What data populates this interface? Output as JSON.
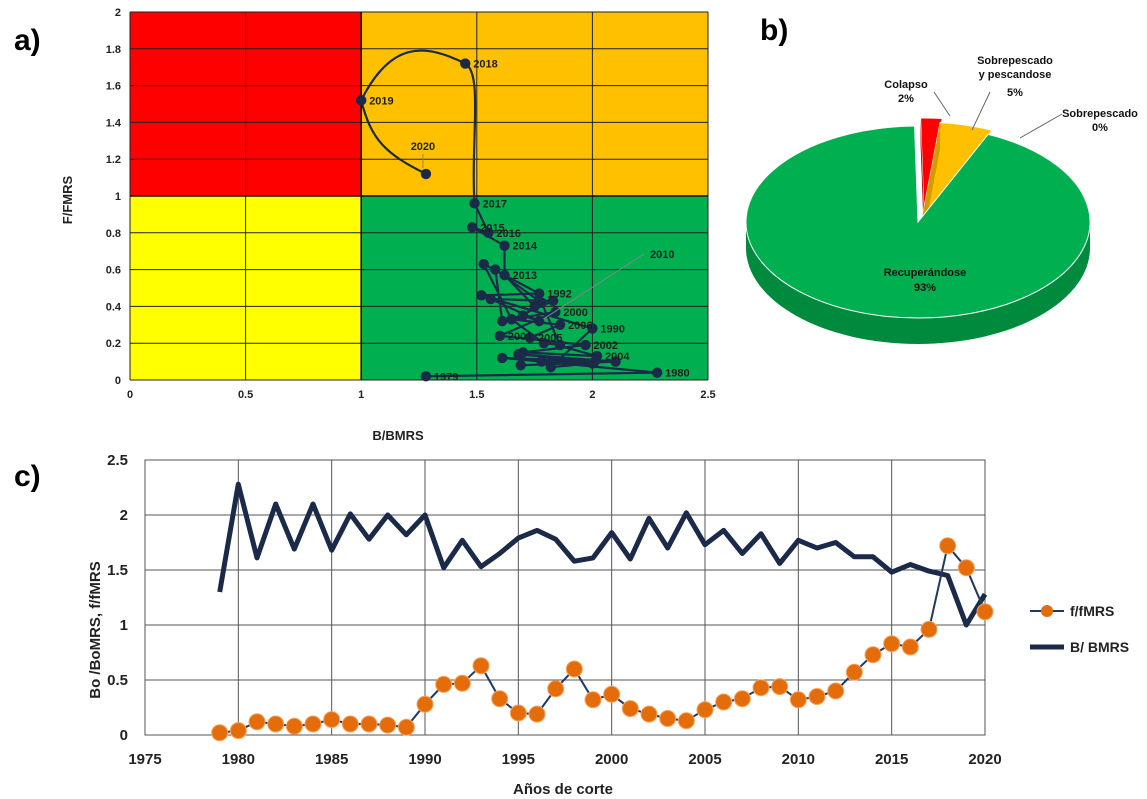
{
  "panels": {
    "a": "a)",
    "b": "b)",
    "c": "c)"
  },
  "colors": {
    "red": "#ff0000",
    "orange": "#ffc000",
    "yellow": "#ffff00",
    "green": "#00b050",
    "navy": "#1b2a48",
    "orange_marker": "#e46c0a",
    "pie_green": "#00b050",
    "pie_yellow": "#ffc000",
    "pie_red": "#ff0000"
  },
  "chart_data": [
    {
      "type": "scatter",
      "panel": "a",
      "xlabel": "B/BMRS",
      "ylabel": "F/FMRS",
      "xlim": [
        0,
        2.5
      ],
      "ylim": [
        0,
        2
      ],
      "xticks": [
        "0",
        "0.5",
        "1",
        "1.5",
        "2",
        "2.5"
      ],
      "yticks": [
        "0",
        "0.2",
        "0.4",
        "0.6",
        "0.8",
        "1",
        "1.2",
        "1.4",
        "1.6",
        "1.8",
        "2"
      ],
      "grid": true,
      "zones": [
        {
          "x": [
            0,
            1
          ],
          "y": [
            1,
            2
          ],
          "color": "red"
        },
        {
          "x": [
            1,
            2.5
          ],
          "y": [
            1,
            2
          ],
          "color": "orange"
        },
        {
          "x": [
            0,
            1
          ],
          "y": [
            0,
            1
          ],
          "color": "yellow"
        },
        {
          "x": [
            1,
            2.5
          ],
          "y": [
            0,
            1
          ],
          "color": "green"
        }
      ],
      "years": [
        1979,
        1980,
        1981,
        1982,
        1983,
        1984,
        1985,
        1986,
        1987,
        1988,
        1989,
        1990,
        1991,
        1992,
        1993,
        1994,
        1995,
        1996,
        1997,
        1998,
        1999,
        2000,
        2001,
        2002,
        2003,
        2004,
        2005,
        2006,
        2007,
        2008,
        2009,
        2010,
        2011,
        2012,
        2013,
        2014,
        2015,
        2016,
        2017,
        2018,
        2019,
        2020
      ],
      "x": [
        1.28,
        2.28,
        1.61,
        2.1,
        1.69,
        2.1,
        1.68,
        2.01,
        1.78,
        2.0,
        1.82,
        2.0,
        1.52,
        1.77,
        1.53,
        1.65,
        1.79,
        1.86,
        1.78,
        1.58,
        1.61,
        1.84,
        1.6,
        1.97,
        1.7,
        2.02,
        1.73,
        1.86,
        1.65,
        1.83,
        1.56,
        1.77,
        1.7,
        1.75,
        1.62,
        1.62,
        1.48,
        1.55,
        1.49,
        1.45,
        1.0,
        1.28
      ],
      "y": [
        0.02,
        0.04,
        0.12,
        0.1,
        0.08,
        0.1,
        0.14,
        0.1,
        0.1,
        0.09,
        0.07,
        0.28,
        0.46,
        0.47,
        0.63,
        0.33,
        0.2,
        0.19,
        0.42,
        0.6,
        0.32,
        0.37,
        0.24,
        0.19,
        0.15,
        0.13,
        0.23,
        0.3,
        0.33,
        0.43,
        0.44,
        0.32,
        0.35,
        0.4,
        0.57,
        0.73,
        0.83,
        0.8,
        0.96,
        1.72,
        1.52,
        1.12
      ],
      "labeled": {
        "1979": "1979",
        "1980": "1980",
        "1990": "1990",
        "1992": "1992",
        "2000": "2000",
        "2001": "2001",
        "2002": "2002",
        "2004": "2004",
        "2005": "2005",
        "2006": "2006",
        "2013": "2013",
        "2014": "2014",
        "2015": "2015",
        "2016": "2016",
        "2017": "2017",
        "2018": "2018",
        "2019": "2019",
        "2020": "2020"
      },
      "callout": "2010"
    },
    {
      "type": "pie",
      "panel": "b",
      "slices": [
        {
          "label": "Colapso",
          "pct_label": "2%",
          "value": 2,
          "color": "pie_red"
        },
        {
          "label": "Sobrepescado y pescandose",
          "line1": "Sobrepescado",
          "line2": "y pescandose",
          "pct_label": "5%",
          "value": 5,
          "color": "pie_yellow"
        },
        {
          "label": "Sobrepescado",
          "pct_label": "0%",
          "value": 0,
          "color": "pie_yellow"
        },
        {
          "label": "Recuperándose",
          "pct_label": "93%",
          "value": 93,
          "color": "pie_green"
        }
      ]
    },
    {
      "type": "line",
      "panel": "c",
      "xlabel": "Años de corte",
      "ylabel": "Bo /BoMRS, f/fMRS",
      "xlim": [
        1975,
        2020
      ],
      "ylim": [
        0,
        2.5
      ],
      "xticks": [
        "1975",
        "1980",
        "1985",
        "1990",
        "1995",
        "2000",
        "2005",
        "2010",
        "2015",
        "2020"
      ],
      "yticks": [
        "0",
        "0.5",
        "1",
        "1.5",
        "2",
        "2.5"
      ],
      "grid": true,
      "legend": "right",
      "x": [
        1979,
        1980,
        1981,
        1982,
        1983,
        1984,
        1985,
        1986,
        1987,
        1988,
        1989,
        1990,
        1991,
        1992,
        1993,
        1994,
        1995,
        1996,
        1997,
        1998,
        1999,
        2000,
        2001,
        2002,
        2003,
        2004,
        2005,
        2006,
        2007,
        2008,
        2009,
        2010,
        2011,
        2012,
        2013,
        2014,
        2015,
        2016,
        2017,
        2018,
        2019,
        2020
      ],
      "series": [
        {
          "name": "f/fMRS",
          "style": "orange-markers",
          "values": [
            0.02,
            0.04,
            0.12,
            0.1,
            0.08,
            0.1,
            0.14,
            0.1,
            0.1,
            0.09,
            0.07,
            0.28,
            0.46,
            0.47,
            0.63,
            0.33,
            0.2,
            0.19,
            0.42,
            0.6,
            0.32,
            0.37,
            0.24,
            0.19,
            0.15,
            0.13,
            0.23,
            0.3,
            0.33,
            0.43,
            0.44,
            0.32,
            0.35,
            0.4,
            0.57,
            0.73,
            0.83,
            0.8,
            0.96,
            1.72,
            1.52,
            1.12
          ]
        },
        {
          "name": "B/ BMRS",
          "style": "thick-navy",
          "values": [
            1.3,
            2.28,
            1.61,
            2.1,
            1.69,
            2.1,
            1.68,
            2.01,
            1.78,
            2.0,
            1.82,
            2.0,
            1.52,
            1.77,
            1.53,
            1.65,
            1.79,
            1.86,
            1.78,
            1.58,
            1.61,
            1.84,
            1.6,
            1.97,
            1.7,
            2.02,
            1.73,
            1.86,
            1.65,
            1.83,
            1.56,
            1.77,
            1.7,
            1.75,
            1.62,
            1.62,
            1.48,
            1.55,
            1.49,
            1.45,
            1.0,
            1.28
          ]
        }
      ]
    }
  ]
}
